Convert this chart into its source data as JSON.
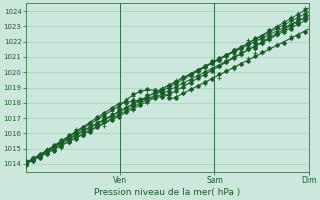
{
  "bg_color": "#cce8dd",
  "grid_color": "#99ccbb",
  "line_color": "#1a5c2a",
  "xlabel": "Pression niveau de la mer( hPa )",
  "ylim": [
    1013.5,
    1024.5
  ],
  "yticks": [
    1014,
    1015,
    1016,
    1017,
    1018,
    1019,
    1020,
    1021,
    1022,
    1023,
    1024
  ],
  "xlim": [
    0,
    1.0
  ],
  "day_positions": [
    0.333,
    0.667,
    1.0
  ],
  "day_labels": [
    "Ven",
    "Sam",
    "Dim"
  ],
  "num_points": 80
}
